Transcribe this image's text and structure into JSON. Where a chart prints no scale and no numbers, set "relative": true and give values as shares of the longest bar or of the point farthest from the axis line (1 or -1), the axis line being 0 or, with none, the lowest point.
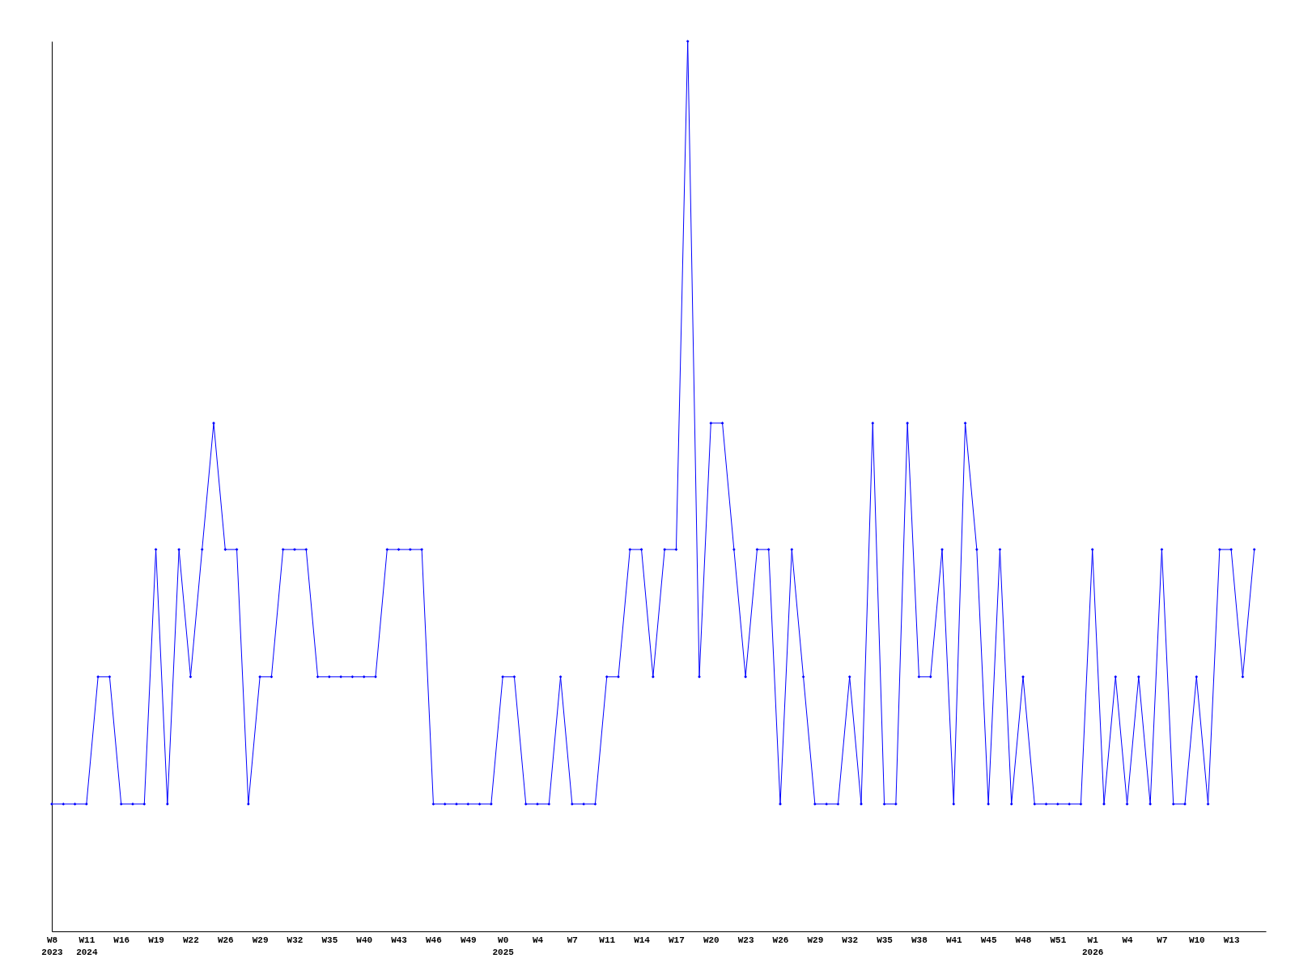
{
  "chart_data": {
    "type": "line",
    "relative": true,
    "color": "#0000ff",
    "marker": "diamond",
    "grid": false,
    "legend": false,
    "categories": [
      "W8\n2023",
      null,
      null,
      "W11\n2024",
      null,
      null,
      "W16",
      null,
      null,
      "W19",
      null,
      null,
      "W22",
      null,
      null,
      "W26",
      null,
      null,
      "W29",
      null,
      null,
      "W32",
      null,
      null,
      "W35",
      null,
      null,
      "W40",
      null,
      null,
      "W43",
      null,
      null,
      "W46",
      null,
      null,
      "W49",
      null,
      null,
      "W0\n2025",
      null,
      null,
      "W4",
      null,
      null,
      "W7",
      null,
      null,
      "W11",
      null,
      null,
      "W14",
      null,
      null,
      "W17",
      null,
      null,
      "W20",
      null,
      null,
      "W23",
      null,
      null,
      "W26",
      null,
      null,
      "W29",
      null,
      null,
      "W32",
      null,
      null,
      "W35",
      null,
      null,
      "W38",
      null,
      null,
      "W41",
      null,
      null,
      "W45",
      null,
      null,
      "W48",
      null,
      null,
      "W51",
      null,
      null,
      "W1\n2026",
      null,
      null,
      "W4",
      null,
      null,
      "W7",
      null,
      null,
      "W10",
      null,
      null,
      "W13",
      null,
      null
    ],
    "values": [
      0.143,
      0.143,
      0.143,
      0.143,
      0.286,
      0.286,
      0.143,
      0.143,
      0.143,
      0.429,
      0.143,
      0.429,
      0.286,
      0.429,
      0.571,
      0.429,
      0.429,
      0.143,
      0.286,
      0.286,
      0.429,
      0.429,
      0.429,
      0.286,
      0.286,
      0.286,
      0.286,
      0.286,
      0.286,
      0.429,
      0.429,
      0.429,
      0.429,
      0.143,
      0.143,
      0.143,
      0.143,
      0.143,
      0.143,
      0.286,
      0.286,
      0.143,
      0.143,
      0.143,
      0.286,
      0.143,
      0.143,
      0.143,
      0.286,
      0.286,
      0.429,
      0.429,
      0.286,
      0.429,
      0.429,
      1,
      0.286,
      0.571,
      0.571,
      0.429,
      0.286,
      0.429,
      0.429,
      0.143,
      0.429,
      0.286,
      0.143,
      0.143,
      0.143,
      0.286,
      0.143,
      0.571,
      0.143,
      0.143,
      0.571,
      0.286,
      0.286,
      0.429,
      0.143,
      0.571,
      0.429,
      0.143,
      0.429,
      0.143,
      0.286,
      0.143,
      0.143,
      0.143,
      0.143,
      0.143,
      0.429,
      0.143,
      0.286,
      0.143,
      0.286,
      0.143,
      0.429,
      0.143,
      0.143,
      0.286,
      0.143,
      0.429,
      0.429,
      0.286,
      0.429
    ]
  }
}
